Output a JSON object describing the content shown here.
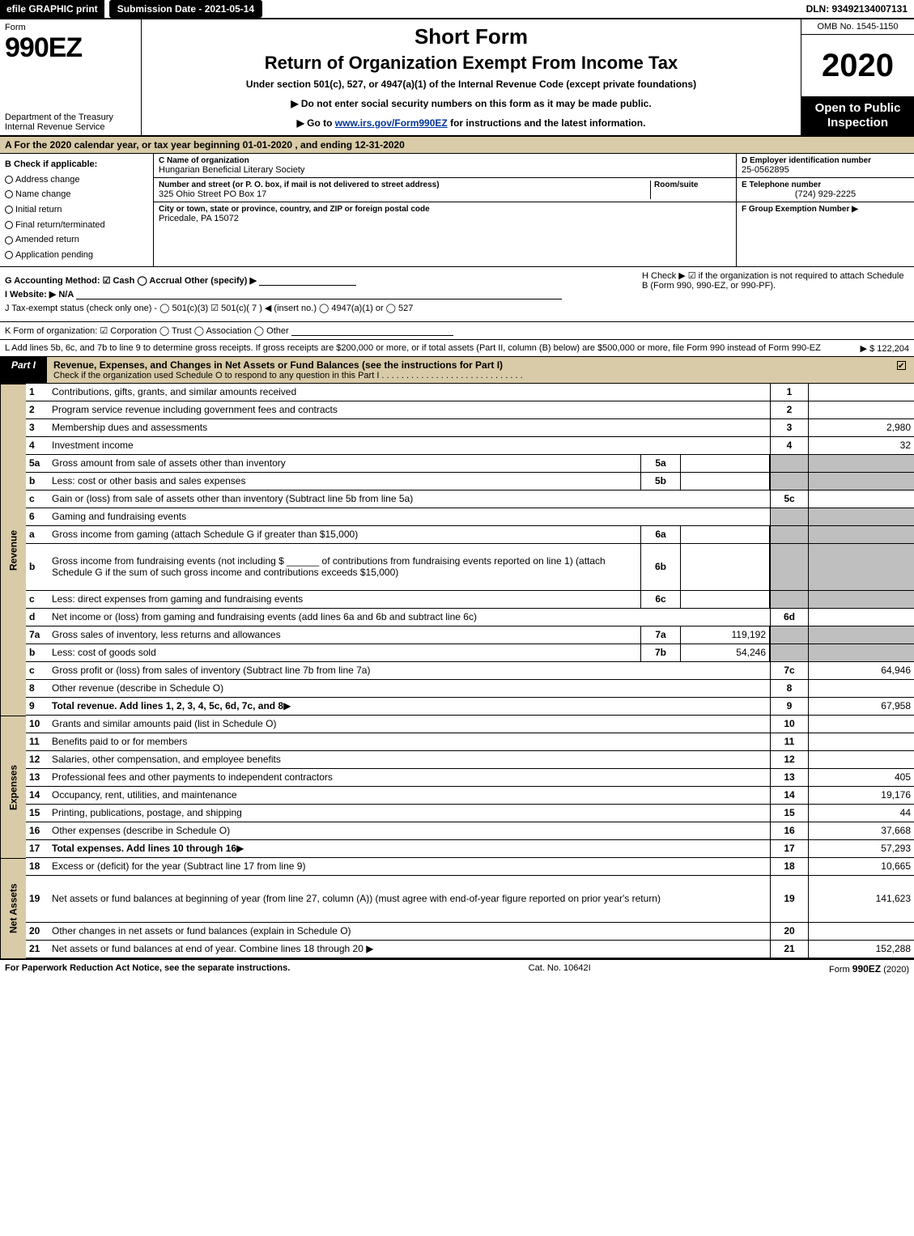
{
  "topbar": {
    "efile": "efile GRAPHIC print",
    "submission": "Submission Date - 2021-05-14",
    "dln": "DLN: 93492134007131"
  },
  "header": {
    "form_word": "Form",
    "form_code": "990EZ",
    "dept": "Department of the Treasury\nInternal Revenue Service",
    "short_form": "Short Form",
    "return_exempt": "Return of Organization Exempt From Income Tax",
    "subtitle": "Under section 501(c), 527, or 4947(a)(1) of the Internal Revenue Code (except private foundations)",
    "warn": "▶ Do not enter social security numbers on this form as it may be made public.",
    "goto_pre": "▶ Go to ",
    "goto_link": "www.irs.gov/Form990EZ",
    "goto_post": " for instructions and the latest information.",
    "omb": "OMB No. 1545-1150",
    "year": "2020",
    "open": "Open to Public Inspection"
  },
  "tax_year_bar": "A For the 2020 calendar year, or tax year beginning 01-01-2020 , and ending 12-31-2020",
  "section_b": {
    "title": "B Check if applicable:",
    "items": [
      "Address change",
      "Name change",
      "Initial return",
      "Final return/terminated",
      "Amended return",
      "Application pending"
    ]
  },
  "section_c": {
    "label": "C Name of organization",
    "name": "Hungarian Beneficial Literary Society",
    "addr_label": "Number and street (or P. O. box, if mail is not delivered to street address)",
    "room_label": "Room/suite",
    "address": "325 Ohio Street PO Box 17",
    "city_label": "City or town, state or province, country, and ZIP or foreign postal code",
    "city": "Pricedale, PA  15072"
  },
  "section_d": {
    "label": "D Employer identification number",
    "value": "25-0562895"
  },
  "section_e": {
    "label": "E Telephone number",
    "value": "(724) 929-2225"
  },
  "section_f": {
    "label": "F Group Exemption Number ▶",
    "value": ""
  },
  "section_g": "G Accounting Method: ☑ Cash  ◯ Accrual  Other (specify) ▶",
  "section_h": "H  Check ▶ ☑ if the organization is not required to attach Schedule B (Form 990, 990-EZ, or 990-PF).",
  "section_i": "I Website: ▶ N/A",
  "section_j": "J Tax-exempt status (check only one) -  ◯ 501(c)(3)  ☑ 501(c)( 7 ) ◀ (insert no.)  ◯ 4947(a)(1) or  ◯ 527",
  "section_k": "K Form of organization:  ☑ Corporation  ◯ Trust  ◯ Association  ◯ Other",
  "section_l": {
    "text": "L Add lines 5b, 6c, and 7b to line 9 to determine gross receipts. If gross receipts are $200,000 or more, or if total assets (Part II, column (B) below) are $500,000 or more, file Form 990 instead of Form 990-EZ",
    "amount": "▶ $ 122,204"
  },
  "part1": {
    "tab": "Part I",
    "title": "Revenue, Expenses, and Changes in Net Assets or Fund Balances (see the instructions for Part I)",
    "subtitle": "Check if the organization used Schedule O to respond to any question in this Part I",
    "checked": true
  },
  "sections": {
    "revenue": "Revenue",
    "expenses": "Expenses",
    "netassets": "Net Assets"
  },
  "lines": [
    {
      "side": "revenue",
      "n": "1",
      "desc": "Contributions, gifts, grants, and similar amounts received",
      "ln": "1",
      "val": ""
    },
    {
      "side": "revenue",
      "n": "2",
      "desc": "Program service revenue including government fees and contracts",
      "ln": "2",
      "val": ""
    },
    {
      "side": "revenue",
      "n": "3",
      "desc": "Membership dues and assessments",
      "ln": "3",
      "val": "2,980"
    },
    {
      "side": "revenue",
      "n": "4",
      "desc": "Investment income",
      "ln": "4",
      "val": "32"
    },
    {
      "side": "revenue",
      "n": "5a",
      "desc": "Gross amount from sale of assets other than inventory",
      "sub": "5a",
      "subval": "",
      "shade": true
    },
    {
      "side": "revenue",
      "n": "b",
      "desc": "Less: cost or other basis and sales expenses",
      "sub": "5b",
      "subval": "",
      "shade": true
    },
    {
      "side": "revenue",
      "n": "c",
      "desc": "Gain or (loss) from sale of assets other than inventory (Subtract line 5b from line 5a)",
      "ln": "5c",
      "val": ""
    },
    {
      "side": "revenue",
      "n": "6",
      "desc": "Gaming and fundraising events",
      "shade": true,
      "noln": true
    },
    {
      "side": "revenue",
      "n": "a",
      "desc": "Gross income from gaming (attach Schedule G if greater than $15,000)",
      "sub": "6a",
      "subval": "",
      "shade": true
    },
    {
      "side": "revenue",
      "n": "b",
      "desc": "Gross income from fundraising events (not including $ ______ of contributions from fundraising events reported on line 1) (attach Schedule G if the sum of such gross income and contributions exceeds $15,000)",
      "sub": "6b",
      "subval": "",
      "shade": true,
      "tall": true
    },
    {
      "side": "revenue",
      "n": "c",
      "desc": "Less: direct expenses from gaming and fundraising events",
      "sub": "6c",
      "subval": "",
      "shade": true
    },
    {
      "side": "revenue",
      "n": "d",
      "desc": "Net income or (loss) from gaming and fundraising events (add lines 6a and 6b and subtract line 6c)",
      "ln": "6d",
      "val": ""
    },
    {
      "side": "revenue",
      "n": "7a",
      "desc": "Gross sales of inventory, less returns and allowances",
      "sub": "7a",
      "subval": "119,192",
      "shade": true
    },
    {
      "side": "revenue",
      "n": "b",
      "desc": "Less: cost of goods sold",
      "sub": "7b",
      "subval": "54,246",
      "shade": true
    },
    {
      "side": "revenue",
      "n": "c",
      "desc": "Gross profit or (loss) from sales of inventory (Subtract line 7b from line 7a)",
      "ln": "7c",
      "val": "64,946"
    },
    {
      "side": "revenue",
      "n": "8",
      "desc": "Other revenue (describe in Schedule O)",
      "ln": "8",
      "val": ""
    },
    {
      "side": "revenue",
      "n": "9",
      "desc": "Total revenue. Add lines 1, 2, 3, 4, 5c, 6d, 7c, and 8",
      "ln": "9",
      "val": "67,958",
      "bold": true,
      "arrow": true
    },
    {
      "side": "expenses",
      "n": "10",
      "desc": "Grants and similar amounts paid (list in Schedule O)",
      "ln": "10",
      "val": ""
    },
    {
      "side": "expenses",
      "n": "11",
      "desc": "Benefits paid to or for members",
      "ln": "11",
      "val": ""
    },
    {
      "side": "expenses",
      "n": "12",
      "desc": "Salaries, other compensation, and employee benefits",
      "ln": "12",
      "val": ""
    },
    {
      "side": "expenses",
      "n": "13",
      "desc": "Professional fees and other payments to independent contractors",
      "ln": "13",
      "val": "405"
    },
    {
      "side": "expenses",
      "n": "14",
      "desc": "Occupancy, rent, utilities, and maintenance",
      "ln": "14",
      "val": "19,176"
    },
    {
      "side": "expenses",
      "n": "15",
      "desc": "Printing, publications, postage, and shipping",
      "ln": "15",
      "val": "44"
    },
    {
      "side": "expenses",
      "n": "16",
      "desc": "Other expenses (describe in Schedule O)",
      "ln": "16",
      "val": "37,668"
    },
    {
      "side": "expenses",
      "n": "17",
      "desc": "Total expenses. Add lines 10 through 16",
      "ln": "17",
      "val": "57,293",
      "bold": true,
      "arrow": true
    },
    {
      "side": "netassets",
      "n": "18",
      "desc": "Excess or (deficit) for the year (Subtract line 17 from line 9)",
      "ln": "18",
      "val": "10,665"
    },
    {
      "side": "netassets",
      "n": "19",
      "desc": "Net assets or fund balances at beginning of year (from line 27, column (A)) (must agree with end-of-year figure reported on prior year's return)",
      "ln": "19",
      "val": "141,623",
      "tall": true
    },
    {
      "side": "netassets",
      "n": "20",
      "desc": "Other changes in net assets or fund balances (explain in Schedule O)",
      "ln": "20",
      "val": ""
    },
    {
      "side": "netassets",
      "n": "21",
      "desc": "Net assets or fund balances at end of year. Combine lines 18 through 20",
      "ln": "21",
      "val": "152,288",
      "arrow": true
    }
  ],
  "footer": {
    "left": "For Paperwork Reduction Act Notice, see the separate instructions.",
    "mid": "Cat. No. 10642I",
    "right": "Form 990-EZ (2020)"
  },
  "colors": {
    "tan": "#d9cba7",
    "grey": "#bfbfbf",
    "black": "#000000",
    "link": "#003399"
  }
}
